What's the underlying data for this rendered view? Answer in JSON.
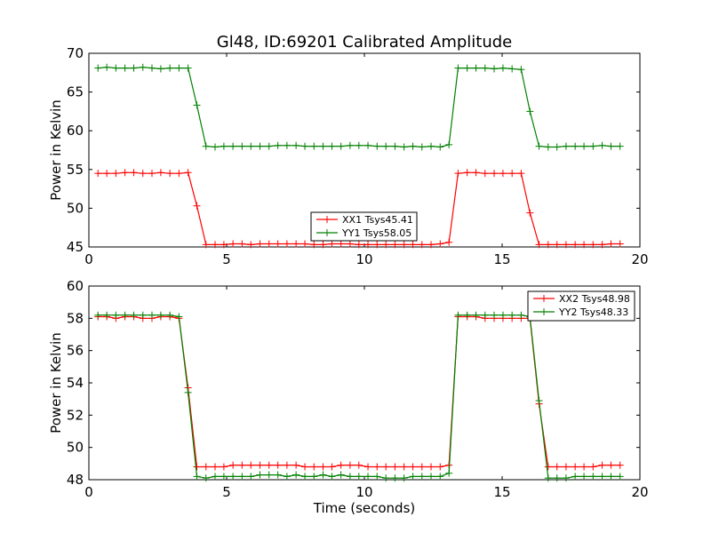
{
  "title": "Gl48, ID:69201 Calibrated Amplitude",
  "xlabel": "Time (seconds)",
  "chart_data": [
    {
      "type": "line",
      "ylabel": "Power in Kelvin",
      "xlabel": "",
      "xlim": [
        0,
        20
      ],
      "ylim": [
        45,
        70
      ],
      "xticks": [
        "0",
        "5",
        "10",
        "15",
        "20"
      ],
      "yticks": [
        "45",
        "50",
        "55",
        "60",
        "65",
        "70"
      ],
      "legend_position": "lower-center",
      "series": [
        {
          "name": "XX1 Tsys45.41",
          "color": "#ff0000",
          "x": [
            0.33,
            0.65,
            0.98,
            1.31,
            1.63,
            1.96,
            2.29,
            2.61,
            2.94,
            3.27,
            3.6,
            3.92,
            4.25,
            4.58,
            4.9,
            5.23,
            5.56,
            5.88,
            6.21,
            6.54,
            6.86,
            7.19,
            7.52,
            7.84,
            8.17,
            8.5,
            8.82,
            9.15,
            9.48,
            9.8,
            10.13,
            10.46,
            10.78,
            11.11,
            11.44,
            11.76,
            12.09,
            12.42,
            12.75,
            13.07,
            13.4,
            13.73,
            14.05,
            14.38,
            14.71,
            15.03,
            15.36,
            15.69,
            16.01,
            16.34,
            16.67,
            16.99,
            17.32,
            17.65,
            17.97,
            18.3,
            18.63,
            18.95,
            19.28
          ],
          "values": [
            54.5,
            54.5,
            54.5,
            54.6,
            54.6,
            54.5,
            54.5,
            54.6,
            54.5,
            54.5,
            54.6,
            50.3,
            45.3,
            45.3,
            45.3,
            45.4,
            45.4,
            45.3,
            45.4,
            45.4,
            45.4,
            45.4,
            45.4,
            45.4,
            45.3,
            45.3,
            45.4,
            45.4,
            45.4,
            45.3,
            45.3,
            45.3,
            45.3,
            45.3,
            45.3,
            45.3,
            45.3,
            45.3,
            45.4,
            45.6,
            54.5,
            54.6,
            54.6,
            54.5,
            54.5,
            54.5,
            54.5,
            54.5,
            49.4,
            45.3,
            45.3,
            45.3,
            45.3,
            45.3,
            45.3,
            45.3,
            45.3,
            45.4,
            45.4
          ]
        },
        {
          "name": "YY1 Tsys58.05",
          "color": "#008000",
          "x": [
            0.33,
            0.65,
            0.98,
            1.31,
            1.63,
            1.96,
            2.29,
            2.61,
            2.94,
            3.27,
            3.6,
            3.92,
            4.25,
            4.58,
            4.9,
            5.23,
            5.56,
            5.88,
            6.21,
            6.54,
            6.86,
            7.19,
            7.52,
            7.84,
            8.17,
            8.5,
            8.82,
            9.15,
            9.48,
            9.8,
            10.13,
            10.46,
            10.78,
            11.11,
            11.44,
            11.76,
            12.09,
            12.42,
            12.75,
            13.07,
            13.4,
            13.73,
            14.05,
            14.38,
            14.71,
            15.03,
            15.36,
            15.69,
            16.01,
            16.34,
            16.67,
            16.99,
            17.32,
            17.65,
            17.97,
            18.3,
            18.63,
            18.95,
            19.28
          ],
          "values": [
            68.1,
            68.2,
            68.1,
            68.1,
            68.1,
            68.2,
            68.1,
            68.0,
            68.1,
            68.1,
            68.1,
            63.3,
            58.0,
            57.9,
            58.0,
            58.0,
            58.0,
            58.0,
            58.0,
            58.0,
            58.1,
            58.1,
            58.1,
            58.0,
            58.0,
            58.0,
            58.0,
            58.0,
            58.1,
            58.1,
            58.1,
            58.0,
            58.0,
            58.0,
            57.9,
            58.0,
            57.9,
            58.0,
            57.9,
            58.2,
            68.1,
            68.1,
            68.1,
            68.1,
            68.0,
            68.1,
            68.0,
            67.9,
            62.5,
            58.0,
            57.9,
            57.9,
            58.0,
            58.0,
            58.0,
            58.0,
            58.1,
            58.0,
            58.0
          ]
        }
      ]
    },
    {
      "type": "line",
      "ylabel": "Power in Kelvin",
      "xlabel": "Time (seconds)",
      "xlim": [
        0,
        20
      ],
      "ylim": [
        48,
        60
      ],
      "xticks": [
        "0",
        "5",
        "10",
        "15",
        "20"
      ],
      "yticks": [
        "48",
        "50",
        "52",
        "54",
        "56",
        "58",
        "60"
      ],
      "legend_position": "top-right",
      "series": [
        {
          "name": "XX2 Tsys48.98",
          "color": "#ff0000",
          "x": [
            0.33,
            0.65,
            0.98,
            1.31,
            1.63,
            1.96,
            2.29,
            2.61,
            2.94,
            3.27,
            3.6,
            3.92,
            4.25,
            4.58,
            4.9,
            5.23,
            5.56,
            5.88,
            6.21,
            6.54,
            6.86,
            7.19,
            7.52,
            7.84,
            8.17,
            8.5,
            8.82,
            9.15,
            9.48,
            9.8,
            10.13,
            10.46,
            10.78,
            11.11,
            11.44,
            11.76,
            12.09,
            12.42,
            12.75,
            13.07,
            13.4,
            13.73,
            14.05,
            14.38,
            14.71,
            15.03,
            15.36,
            15.69,
            16.01,
            16.34,
            16.67,
            16.99,
            17.32,
            17.65,
            17.97,
            18.3,
            18.63,
            18.95,
            19.28
          ],
          "values": [
            58.1,
            58.1,
            58.0,
            58.1,
            58.1,
            58.0,
            58.0,
            58.1,
            58.1,
            58.0,
            53.7,
            48.8,
            48.8,
            48.8,
            48.8,
            48.9,
            48.9,
            48.9,
            48.9,
            48.9,
            48.9,
            48.9,
            48.9,
            48.8,
            48.8,
            48.8,
            48.8,
            48.9,
            48.9,
            48.9,
            48.8,
            48.8,
            48.8,
            48.8,
            48.8,
            48.8,
            48.8,
            48.8,
            48.8,
            48.9,
            58.1,
            58.1,
            58.1,
            58.0,
            58.0,
            58.0,
            58.0,
            58.0,
            58.0,
            52.7,
            48.8,
            48.8,
            48.8,
            48.8,
            48.8,
            48.8,
            48.9,
            48.9,
            48.9
          ]
        },
        {
          "name": "YY2 Tsys48.33",
          "color": "#008000",
          "x": [
            0.33,
            0.65,
            0.98,
            1.31,
            1.63,
            1.96,
            2.29,
            2.61,
            2.94,
            3.27,
            3.6,
            3.92,
            4.25,
            4.58,
            4.9,
            5.23,
            5.56,
            5.88,
            6.21,
            6.54,
            6.86,
            7.19,
            7.52,
            7.84,
            8.17,
            8.5,
            8.82,
            9.15,
            9.48,
            9.8,
            10.13,
            10.46,
            10.78,
            11.11,
            11.44,
            11.76,
            12.09,
            12.42,
            12.75,
            13.07,
            13.4,
            13.73,
            14.05,
            14.38,
            14.71,
            15.03,
            15.36,
            15.69,
            16.01,
            16.34,
            16.67,
            16.99,
            17.32,
            17.65,
            17.97,
            18.3,
            18.63,
            18.95,
            19.28
          ],
          "values": [
            58.2,
            58.2,
            58.2,
            58.2,
            58.2,
            58.2,
            58.2,
            58.2,
            58.2,
            58.1,
            53.4,
            48.2,
            48.1,
            48.2,
            48.2,
            48.2,
            48.2,
            48.2,
            48.3,
            48.3,
            48.3,
            48.2,
            48.3,
            48.2,
            48.2,
            48.3,
            48.2,
            48.3,
            48.2,
            48.2,
            48.2,
            48.2,
            48.1,
            48.1,
            48.1,
            48.2,
            48.2,
            48.2,
            48.2,
            48.4,
            58.2,
            58.2,
            58.2,
            58.2,
            58.2,
            58.2,
            58.2,
            58.2,
            58.1,
            52.9,
            48.1,
            48.1,
            48.1,
            48.2,
            48.2,
            48.2,
            48.2,
            48.2,
            48.2
          ]
        }
      ]
    }
  ]
}
